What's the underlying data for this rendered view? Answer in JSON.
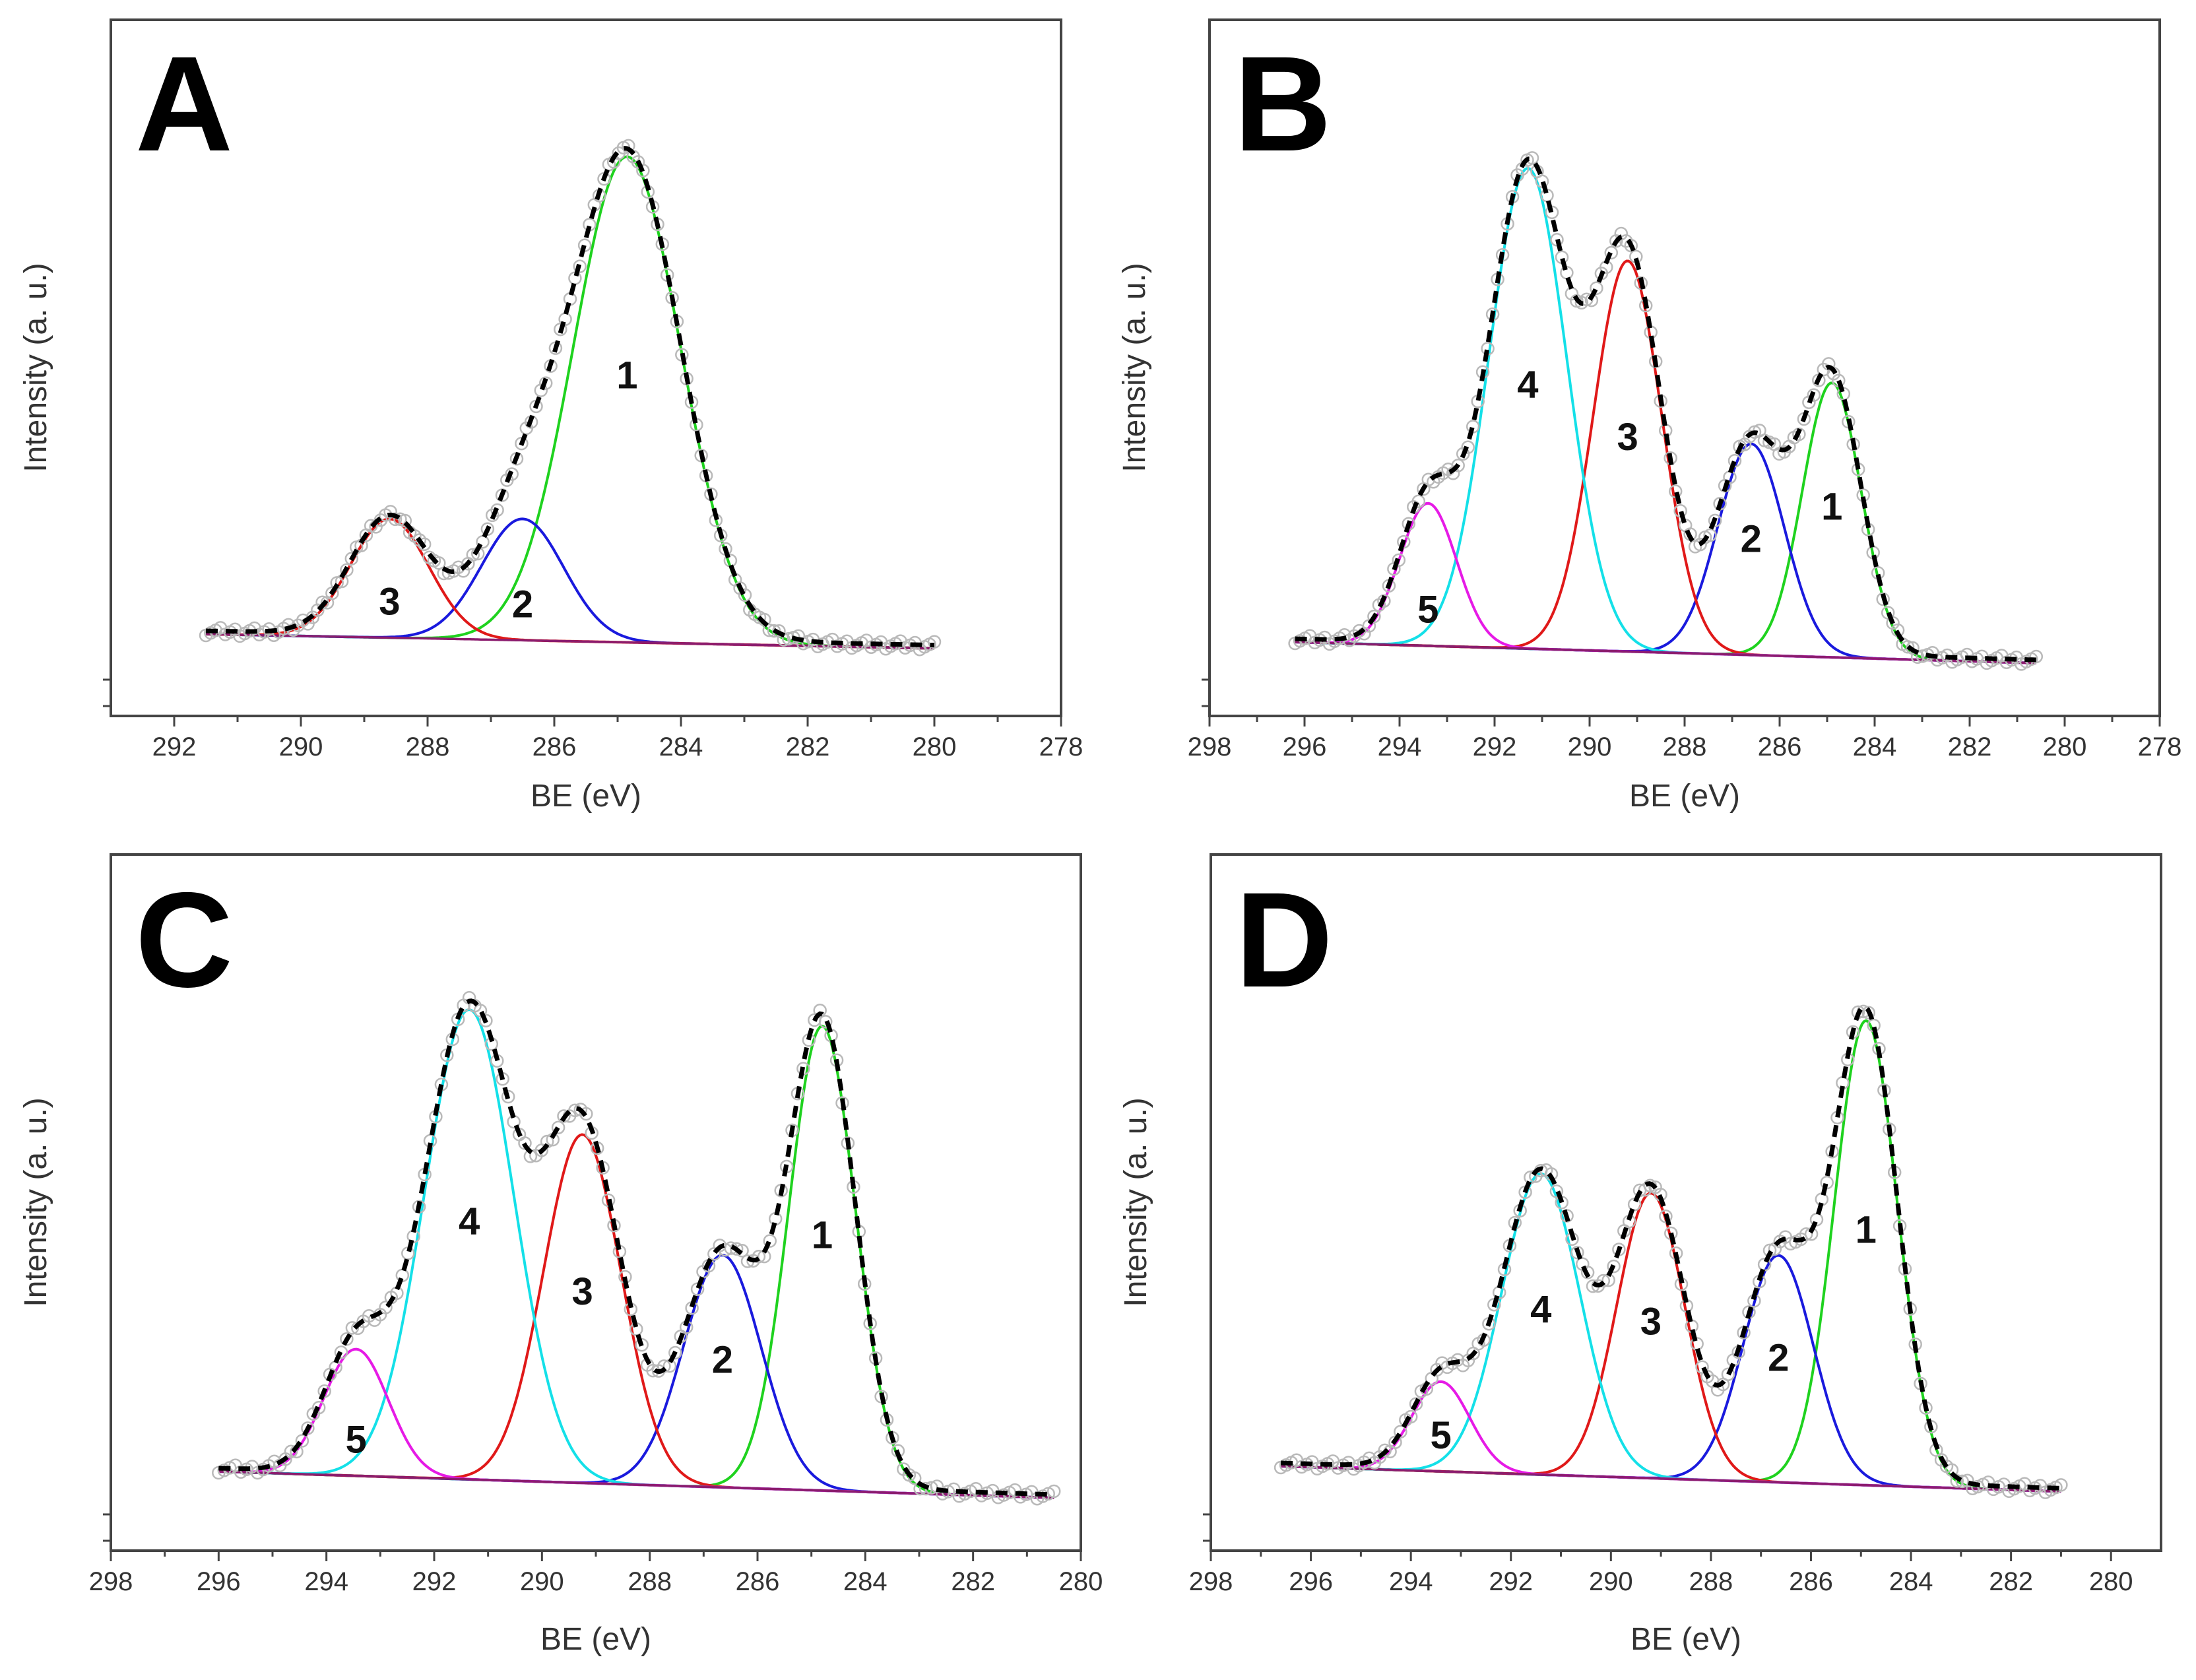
{
  "chart_data": [
    {
      "panel": "A",
      "type": "line",
      "xlabel": "BE (eV)",
      "ylabel": "Intensity (a. u.)",
      "xlim": [
        293,
        278
      ],
      "x_ticks": [
        292,
        290,
        288,
        286,
        284,
        282,
        280,
        278
      ],
      "data_range": [
        291.5,
        280
      ],
      "background": [
        0.055,
        0.028
      ],
      "envelope_style": "black dashed",
      "measured_style": "open grey circles",
      "series": [
        {
          "label": "1",
          "center": 284.85,
          "height": 0.92,
          "sigma": 0.85,
          "color": "#1fd21f"
        },
        {
          "label": "2",
          "center": 286.5,
          "height": 0.23,
          "sigma": 0.65,
          "color": "#1a1add"
        },
        {
          "label": "3",
          "center": 288.6,
          "height": 0.225,
          "sigma": 0.62,
          "color": "#e01919"
        }
      ]
    },
    {
      "panel": "B",
      "type": "line",
      "xlabel": "BE (eV)",
      "ylabel": "Intensity (a. u.)",
      "xlim": [
        298,
        278
      ],
      "x_ticks": [
        298,
        296,
        294,
        292,
        290,
        288,
        286,
        284,
        282,
        280,
        278
      ],
      "data_range": [
        296.2,
        280.6
      ],
      "background": [
        0.04,
        0.0
      ],
      "envelope_style": "black dashed",
      "measured_style": "open grey circles",
      "series": [
        {
          "label": "1",
          "center": 284.9,
          "height": 0.52,
          "sigma": 0.62,
          "color": "#1fd21f"
        },
        {
          "label": "2",
          "center": 286.6,
          "height": 0.4,
          "sigma": 0.7,
          "color": "#1a1add"
        },
        {
          "label": "3",
          "center": 289.2,
          "height": 0.74,
          "sigma": 0.72,
          "color": "#e01919"
        },
        {
          "label": "4",
          "center": 291.3,
          "height": 0.91,
          "sigma": 0.82,
          "color": "#14e0e8"
        },
        {
          "label": "5",
          "center": 293.4,
          "height": 0.27,
          "sigma": 0.6,
          "color": "#e61ae6"
        }
      ]
    },
    {
      "panel": "C",
      "type": "line",
      "xlabel": "BE (eV)",
      "ylabel": "Intensity (a. u.)",
      "xlim": [
        298,
        280
      ],
      "x_ticks": [
        298,
        296,
        294,
        292,
        290,
        288,
        286,
        284,
        282,
        280
      ],
      "data_range": [
        296,
        280.5
      ],
      "background": [
        0.05,
        0.0
      ],
      "envelope_style": "black dashed",
      "measured_style": "open grey circles",
      "series": [
        {
          "label": "1",
          "center": 284.8,
          "height": 0.88,
          "sigma": 0.62,
          "color": "#1fd21f"
        },
        {
          "label": "2",
          "center": 286.65,
          "height": 0.44,
          "sigma": 0.72,
          "color": "#1a1add"
        },
        {
          "label": "3",
          "center": 289.25,
          "height": 0.66,
          "sigma": 0.72,
          "color": "#e01919"
        },
        {
          "label": "4",
          "center": 291.35,
          "height": 0.89,
          "sigma": 0.83,
          "color": "#14e0e8"
        },
        {
          "label": "5",
          "center": 293.45,
          "height": 0.24,
          "sigma": 0.6,
          "color": "#e61ae6"
        }
      ]
    },
    {
      "panel": "D",
      "type": "line",
      "xlabel": "BE (eV)",
      "ylabel": "Intensity (a. u.)",
      "xlim": [
        298,
        279
      ],
      "x_ticks": [
        298,
        296,
        294,
        292,
        290,
        288,
        286,
        284,
        282,
        280
      ],
      "data_range": [
        296.6,
        281
      ],
      "background": [
        0.06,
        0.012
      ],
      "envelope_style": "black dashed",
      "measured_style": "open grey circles",
      "series": [
        {
          "label": "1",
          "center": 284.9,
          "height": 0.88,
          "sigma": 0.63,
          "color": "#1fd21f"
        },
        {
          "label": "2",
          "center": 286.65,
          "height": 0.43,
          "sigma": 0.7,
          "color": "#1a1add"
        },
        {
          "label": "3",
          "center": 289.2,
          "height": 0.54,
          "sigma": 0.68,
          "color": "#e01919"
        },
        {
          "label": "4",
          "center": 291.4,
          "height": 0.57,
          "sigma": 0.78,
          "color": "#14e0e8"
        },
        {
          "label": "5",
          "center": 293.4,
          "height": 0.17,
          "sigma": 0.58,
          "color": "#e61ae6"
        }
      ]
    }
  ]
}
